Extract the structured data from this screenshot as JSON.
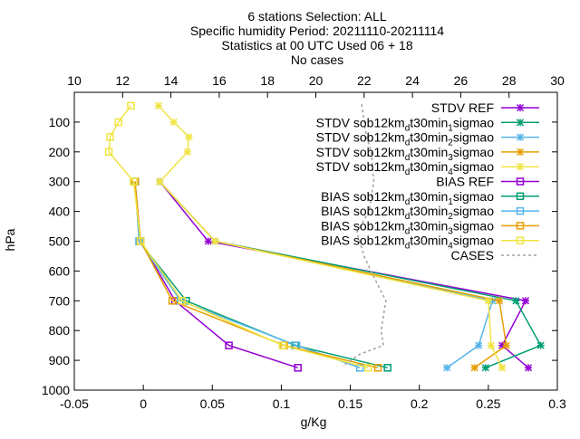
{
  "chart_data": {
    "type": "line",
    "title_lines": [
      "6 stations Selection: ALL",
      "Specific humidity  Period: 20211110-20211114",
      "Statistics at 00 UTC  Used 06 + 18",
      "No cases"
    ],
    "xlabel": "g/Kg",
    "ylabel": "hPa",
    "x_axis": {
      "range": [
        -0.05,
        0.3
      ],
      "ticks": [
        -0.05,
        0,
        0.05,
        0.1,
        0.15,
        0.2,
        0.25,
        0.3
      ],
      "tick_labels": [
        "-0.05",
        "0",
        "0.05",
        "0.1",
        "0.15",
        "0.2",
        "0.25",
        "0.3"
      ]
    },
    "x2_axis": {
      "range": [
        10,
        30
      ],
      "ticks": [
        10,
        12,
        14,
        16,
        18,
        20,
        22,
        24,
        26,
        28,
        30
      ],
      "tick_labels": [
        "10",
        "12",
        "14",
        "16",
        "18",
        "20",
        "22",
        "24",
        "26",
        "28",
        "30"
      ]
    },
    "y_axis": {
      "range": [
        1000,
        0
      ],
      "ticks": [
        100,
        200,
        300,
        400,
        500,
        600,
        700,
        800,
        900,
        1000
      ],
      "tick_labels": [
        "100",
        "200",
        "300",
        "400",
        "500",
        "600",
        "700",
        "800",
        "900",
        "1000"
      ]
    },
    "legend_position": "top-right",
    "series": [
      {
        "name": "STDV REF",
        "marker": "x",
        "color": "#9400d3",
        "axis": "x",
        "points": [
          [
            0.012,
            300
          ],
          [
            0.047,
            500
          ],
          [
            0.277,
            700
          ],
          [
            0.26,
            850
          ],
          [
            0.279,
            925
          ]
        ]
      },
      {
        "name": "STDV sob12km",
        "sub": "d",
        "mid": "t30min",
        "idx": "1",
        "tail": "sigmao",
        "marker": "x",
        "color": "#009e73",
        "axis": "x",
        "points": [
          [
            0.012,
            300
          ],
          [
            0.052,
            500
          ],
          [
            0.27,
            700
          ],
          [
            0.288,
            850
          ],
          [
            0.248,
            925
          ]
        ]
      },
      {
        "name": "STDV sob12km",
        "sub": "d",
        "mid": "t30min",
        "idx": "2",
        "tail": "sigmao",
        "marker": "x",
        "color": "#56b4e9",
        "axis": "x",
        "points": [
          [
            0.012,
            300
          ],
          [
            0.052,
            500
          ],
          [
            0.253,
            700
          ],
          [
            0.243,
            850
          ],
          [
            0.22,
            925
          ]
        ]
      },
      {
        "name": "STDV sob12km",
        "sub": "d",
        "mid": "t30min",
        "idx": "3",
        "tail": "sigmao",
        "marker": "x",
        "color": "#e69f00",
        "axis": "x",
        "points": [
          [
            0.012,
            300
          ],
          [
            0.052,
            500
          ],
          [
            0.258,
            700
          ],
          [
            0.263,
            850
          ],
          [
            0.24,
            925
          ]
        ]
      },
      {
        "name": "STDV sob12km",
        "sub": "d",
        "mid": "t30min",
        "idx": "4",
        "tail": "sigmao",
        "marker": "x",
        "color": "#f0e442",
        "axis": "x",
        "points": [
          [
            0.011,
            45
          ],
          [
            0.022,
            100
          ],
          [
            0.033,
            150
          ],
          [
            0.032,
            200
          ],
          [
            0.012,
            300
          ],
          [
            0.052,
            500
          ],
          [
            0.25,
            700
          ],
          [
            0.252,
            850
          ],
          [
            0.26,
            925
          ]
        ]
      },
      {
        "name": "BIAS REF",
        "marker": "square",
        "color": "#9400d3",
        "axis": "x",
        "points": [
          [
            -0.006,
            300
          ],
          [
            -0.002,
            500
          ],
          [
            0.023,
            700
          ],
          [
            0.062,
            850
          ],
          [
            0.112,
            925
          ]
        ]
      },
      {
        "name": "BIAS sob12km",
        "sub": "d",
        "mid": "t30min",
        "idx": "1",
        "tail": "sigmao",
        "marker": "square",
        "color": "#009e73",
        "axis": "x",
        "points": [
          [
            -0.006,
            300
          ],
          [
            -0.003,
            500
          ],
          [
            0.031,
            700
          ],
          [
            0.11,
            850
          ],
          [
            0.177,
            925
          ]
        ]
      },
      {
        "name": "BIAS sob12km",
        "sub": "d",
        "mid": "t30min",
        "idx": "2",
        "tail": "sigmao",
        "marker": "square",
        "color": "#56b4e9",
        "axis": "x",
        "points": [
          [
            -0.006,
            300
          ],
          [
            -0.003,
            500
          ],
          [
            0.027,
            700
          ],
          [
            0.111,
            850
          ],
          [
            0.157,
            925
          ]
        ]
      },
      {
        "name": "BIAS sob12km",
        "sub": "d",
        "mid": "t30min",
        "idx": "3",
        "tail": "sigmao",
        "marker": "square",
        "color": "#e69f00",
        "axis": "x",
        "points": [
          [
            -0.006,
            300
          ],
          [
            -0.002,
            500
          ],
          [
            0.021,
            700
          ],
          [
            0.102,
            850
          ],
          [
            0.17,
            925
          ]
        ]
      },
      {
        "name": "BIAS sob12km",
        "sub": "d",
        "mid": "t30min",
        "idx": "4",
        "tail": "sigmao",
        "marker": "square",
        "color": "#f0e442",
        "axis": "x",
        "points": [
          [
            -0.009,
            45
          ],
          [
            -0.018,
            100
          ],
          [
            -0.024,
            150
          ],
          [
            -0.025,
            200
          ],
          [
            -0.007,
            300
          ],
          [
            -0.002,
            500
          ],
          [
            0.028,
            700
          ],
          [
            0.101,
            850
          ],
          [
            0.163,
            925
          ]
        ]
      },
      {
        "name": "CASES",
        "marker": "none",
        "dash": true,
        "color": "#a0a0a0",
        "axis": "x2",
        "points": [
          [
            21.9,
            40
          ],
          [
            22.0,
            100
          ],
          [
            22.1,
            150
          ],
          [
            22.3,
            200
          ],
          [
            22.4,
            300
          ],
          [
            22.2,
            400
          ],
          [
            21.7,
            470
          ],
          [
            22.0,
            550
          ],
          [
            22.4,
            620
          ],
          [
            22.9,
            700
          ],
          [
            22.7,
            800
          ],
          [
            22.8,
            850
          ],
          [
            21.8,
            880
          ],
          [
            21.1,
            920
          ]
        ]
      }
    ]
  }
}
